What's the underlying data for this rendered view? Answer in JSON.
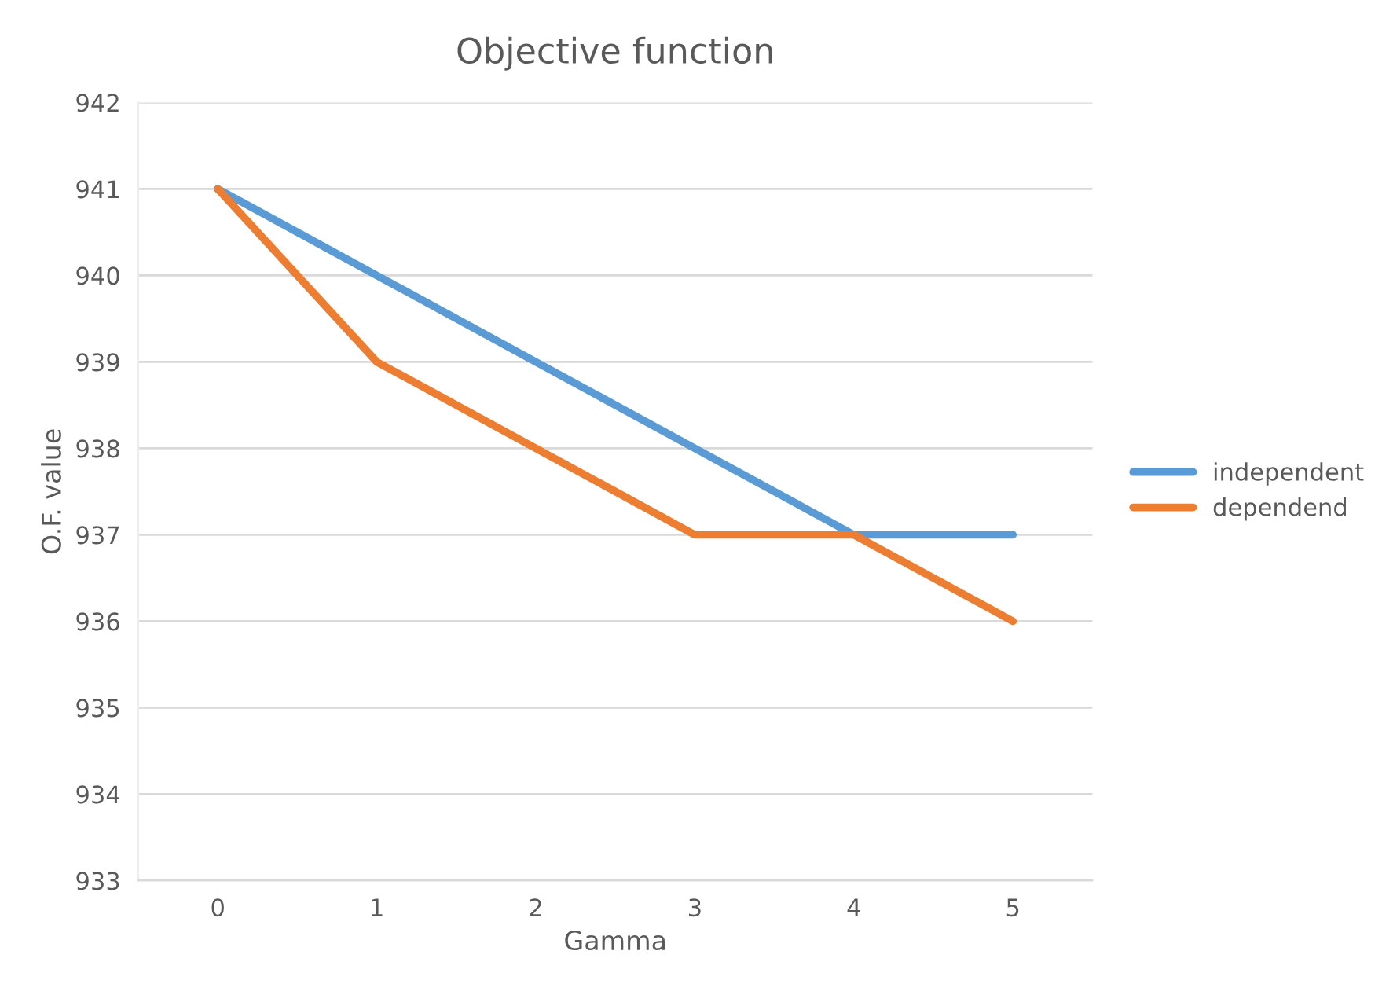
{
  "chart_data": {
    "type": "line",
    "title": "Objective function",
    "xlabel": "Gamma",
    "ylabel": "O.F. value",
    "categories": [
      "0",
      "1",
      "2",
      "3",
      "4",
      "5"
    ],
    "series": [
      {
        "name": "independent",
        "color": "#5b9bd5",
        "values": [
          941,
          940,
          939,
          938,
          937,
          937
        ]
      },
      {
        "name": "dependend",
        "color": "#ed7d31",
        "values": [
          941,
          939,
          938,
          937,
          937,
          936
        ]
      }
    ],
    "ylim": [
      933,
      942
    ],
    "yticks": [
      933,
      934,
      935,
      936,
      937,
      938,
      939,
      940,
      941,
      942
    ],
    "grid": "y",
    "legend": "right",
    "marker": "none",
    "line_style": "solid"
  }
}
